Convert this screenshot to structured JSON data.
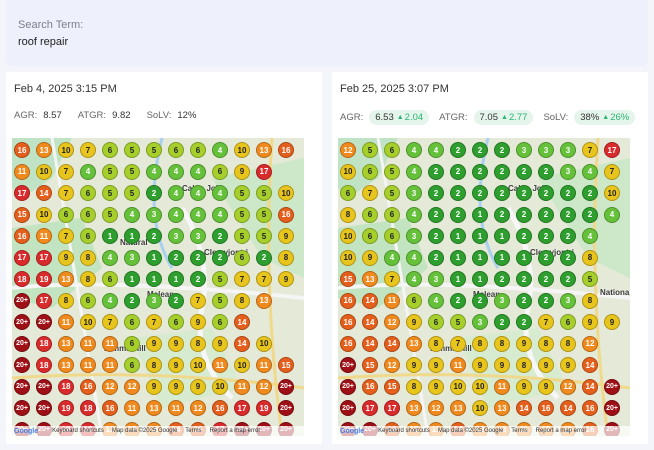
{
  "search": {
    "label": "Search Term:",
    "value": "roof repair"
  },
  "panels": [
    {
      "date": "Feb 4, 2025 3:15 PM",
      "metrics": {
        "agr_label": "AGR:",
        "agr": "8.57",
        "atgr_label": "ATGR:",
        "atgr": "9.82",
        "solv_label": "SoLV:",
        "solv": "12%"
      },
      "grid": [
        [
          "16",
          "13",
          "10",
          "7",
          "6",
          "5",
          "5",
          "6",
          "6",
          "4",
          "10",
          "13",
          "16"
        ],
        [
          "11",
          "10",
          "7",
          "4",
          "5",
          "5",
          "4",
          "4",
          "4",
          "6",
          "9",
          "17",
          ""
        ],
        [
          "17",
          "14",
          "7",
          "6",
          "5",
          "5",
          "2",
          "4",
          "4",
          "4",
          "5",
          "5",
          "10"
        ],
        [
          "15",
          "10",
          "6",
          "6",
          "5",
          "4",
          "3",
          "4",
          "4",
          "4",
          "5",
          "5",
          "16"
        ],
        [
          "16",
          "11",
          "7",
          "6",
          "1",
          "1",
          "2",
          "3",
          "3",
          "2",
          "5",
          "5",
          "9"
        ],
        [
          "17",
          "17",
          "9",
          "8",
          "4",
          "3",
          "1",
          "2",
          "2",
          "2",
          "6",
          "2",
          "8"
        ],
        [
          "18",
          "19",
          "13",
          "8",
          "6",
          "1",
          "1",
          "1",
          "2",
          "5",
          "7",
          "7",
          "9"
        ],
        [
          "20+",
          "17",
          "8",
          "6",
          "4",
          "2",
          "3",
          "2",
          "7",
          "5",
          "8",
          "13",
          ""
        ],
        [
          "20+",
          "20+",
          "11",
          "10",
          "7",
          "6",
          "7",
          "6",
          "9",
          "6",
          "14",
          ""
        ],
        [
          "20+",
          "18",
          "13",
          "11",
          "11",
          "6",
          "9",
          "9",
          "8",
          "9",
          "14",
          "10",
          ""
        ],
        [
          "20+",
          "18",
          "13",
          "11",
          "11",
          "6",
          "8",
          "9",
          "10",
          "11",
          "10",
          "11",
          "15"
        ],
        [
          "20+",
          "20+",
          "18",
          "16",
          "12",
          "12",
          "9",
          "9",
          "9",
          "10",
          "11",
          "12",
          "20+"
        ],
        [
          "20+",
          "20+",
          "19",
          "18",
          "16",
          "11",
          "13",
          "11",
          "12",
          "16",
          "17",
          "19",
          "20+"
        ],
        [
          "20+",
          "20+",
          "19",
          "18",
          "13",
          "13",
          "13",
          "14",
          "16",
          "17",
          "20+",
          "20+",
          "20+"
        ]
      ],
      "places": [
        "Cabin John",
        "Clemyjontri",
        "Mclean",
        "Dimmit Hill",
        "Natural"
      ]
    },
    {
      "date": "Feb 25, 2025 3:07 PM",
      "metrics": {
        "agr_label": "AGR:",
        "agr": "6.53",
        "agr_delta": "2.04",
        "atgr_label": "ATGR:",
        "atgr": "7.05",
        "atgr_delta": "2.77",
        "solv_label": "SoLV:",
        "solv": "38%",
        "solv_delta": "26%"
      },
      "grid": [
        [
          "12",
          "5",
          "6",
          "4",
          "4",
          "2",
          "2",
          "2",
          "3",
          "3",
          "3",
          "7",
          "17"
        ],
        [
          "10",
          "6",
          "5",
          "4",
          "2",
          "2",
          "2",
          "2",
          "2",
          "2",
          "3",
          "4",
          "7"
        ],
        [
          "6",
          "7",
          "5",
          "3",
          "2",
          "2",
          "2",
          "2",
          "2",
          "2",
          "2",
          "2",
          "10"
        ],
        [
          "8",
          "6",
          "6",
          "4",
          "2",
          "2",
          "1",
          "2",
          "2",
          "2",
          "2",
          "2",
          "4"
        ],
        [
          "10",
          "6",
          "6",
          "3",
          "2",
          "1",
          "1",
          "1",
          "2",
          "2",
          "2",
          "4",
          ""
        ],
        [
          "10",
          "9",
          "4",
          "4",
          "2",
          "1",
          "1",
          "1",
          "1",
          "2",
          "2",
          "8",
          ""
        ],
        [
          "15",
          "13",
          "7",
          "4",
          "3",
          "1",
          "1",
          "2",
          "2",
          "2",
          "2",
          "5",
          ""
        ],
        [
          "16",
          "14",
          "11",
          "6",
          "4",
          "2",
          "2",
          "3",
          "2",
          "2",
          "3",
          "8",
          ""
        ],
        [
          "16",
          "14",
          "12",
          "9",
          "6",
          "5",
          "3",
          "2",
          "2",
          "7",
          "6",
          "9",
          "9"
        ],
        [
          "16",
          "14",
          "14",
          "13",
          "8",
          "7",
          "8",
          "8",
          "9",
          "8",
          "8",
          "12",
          ""
        ],
        [
          "20+",
          "15",
          "12",
          "9",
          "9",
          "11",
          "9",
          "9",
          "8",
          "9",
          "9",
          "14",
          ""
        ],
        [
          "20+",
          "16",
          "15",
          "8",
          "9",
          "10",
          "10",
          "11",
          "9",
          "9",
          "12",
          "14",
          "20+"
        ],
        [
          "20+",
          "17",
          "17",
          "13",
          "12",
          "13",
          "10",
          "13",
          "14",
          "16",
          "14",
          "16",
          "20+"
        ],
        [
          "20+",
          "20+",
          "16",
          "12",
          "11",
          "14",
          "12",
          "13",
          "11",
          "12",
          "11",
          "16",
          "20+"
        ]
      ],
      "places": [
        "Cabin John",
        "Clemyjontri",
        "Mclean",
        "Dimmit Hill",
        "Nationa"
      ]
    }
  ],
  "map_attribution": {
    "logo": "Google",
    "shortcuts": "Keyboard shortcuts",
    "data": "Map data ©2025 Google",
    "terms": "Terms",
    "report": "Report a map error"
  },
  "colors": {
    "green_dark": "#2e9e2e",
    "green": "#66c13a",
    "lime": "#a6cf2c",
    "yellow": "#e8c51c",
    "orange": "#f08a1e",
    "orange_dark": "#e45f1c",
    "red": "#d92b2b",
    "maroon": "#9e0f16",
    "pill_bg": "#e5f5ec",
    "delta_green": "#2bb673"
  }
}
